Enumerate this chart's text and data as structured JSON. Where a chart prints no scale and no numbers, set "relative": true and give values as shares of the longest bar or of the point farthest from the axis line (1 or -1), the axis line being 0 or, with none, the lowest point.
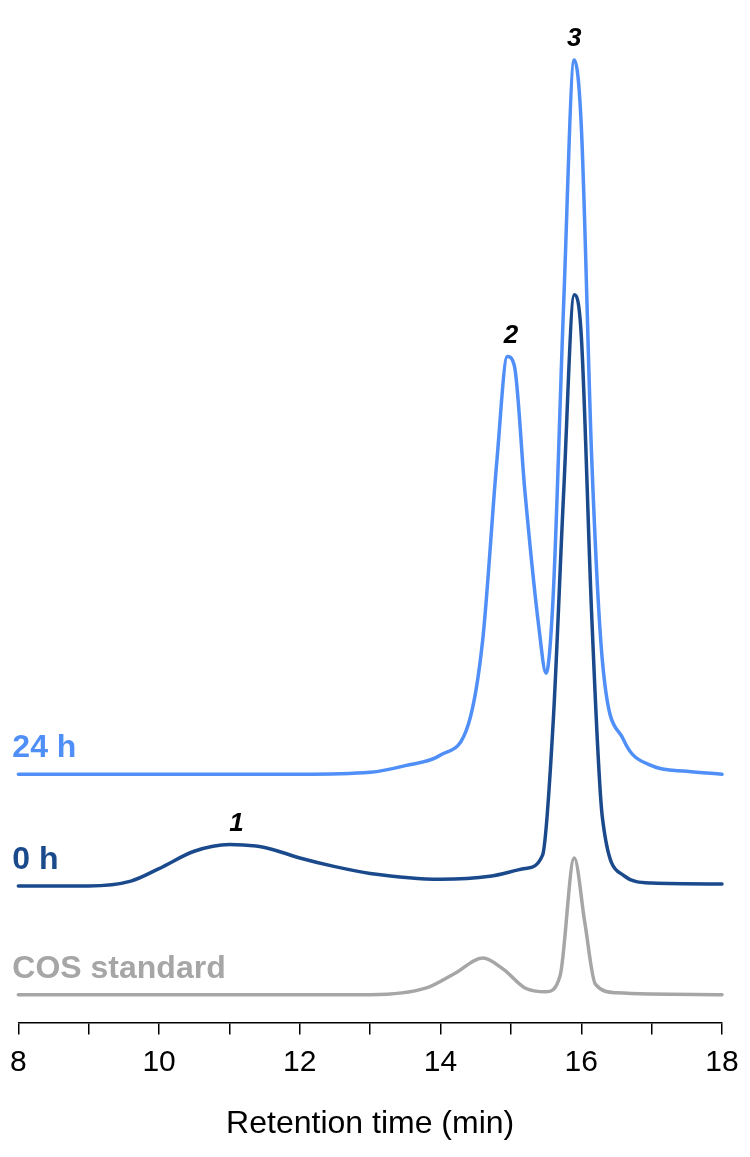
{
  "chart_data": {
    "type": "line",
    "relative": true,
    "xlabel": "Retention time (min)",
    "xlim": [
      8,
      18
    ],
    "xticks": [
      8,
      {
        "value": 9,
        "label": null
      },
      10,
      {
        "value": 11,
        "label": null
      },
      12,
      {
        "value": 13,
        "label": null
      },
      14,
      {
        "value": 15,
        "label": null
      },
      16,
      {
        "value": 17,
        "label": null
      },
      18
    ],
    "grid": false,
    "legend": false,
    "marker": "none",
    "line_style": "solid",
    "tick_labels": "x",
    "series": [
      {
        "name": "24 h",
        "color": "#4f8ff7",
        "x": [
          8,
          12,
          13,
          13.5,
          14,
          14.4,
          14.6,
          14.8,
          14.95,
          15.05,
          15.2,
          15.4,
          15.5,
          15.6,
          15.75,
          15.9,
          16.0,
          16.15,
          16.3,
          16.6,
          17,
          17.5,
          18
        ],
        "values": [
          0.258,
          0.258,
          0.26,
          0.267,
          0.278,
          0.311,
          0.398,
          0.583,
          0.692,
          0.682,
          0.551,
          0.409,
          0.363,
          0.442,
          0.747,
          1.0,
          0.932,
          0.583,
          0.376,
          0.294,
          0.267,
          0.261,
          0.258
        ]
      },
      {
        "name": "0 h",
        "color": "#1b4a8c",
        "x": [
          8,
          9,
          9.6,
          10,
          10.5,
          11,
          11.5,
          12,
          12.5,
          13,
          14,
          14.7,
          15.2,
          15.45,
          15.6,
          15.75,
          15.9,
          16.0,
          16.15,
          16.3,
          16.6,
          17,
          18
        ],
        "values": [
          0.142,
          0.142,
          0.147,
          0.16,
          0.178,
          0.185,
          0.182,
          0.171,
          0.162,
          0.155,
          0.149,
          0.152,
          0.16,
          0.174,
          0.311,
          0.551,
          0.756,
          0.714,
          0.42,
          0.213,
          0.153,
          0.145,
          0.144
        ]
      },
      {
        "name": "COS standard",
        "color": "#a6a6a6",
        "x": [
          8,
          13,
          13.8,
          14.2,
          14.6,
          14.9,
          15.2,
          15.5,
          15.7,
          15.9,
          16.05,
          16.2,
          16.5,
          18
        ],
        "values": [
          0.029,
          0.029,
          0.036,
          0.051,
          0.067,
          0.055,
          0.036,
          0.032,
          0.049,
          0.171,
          0.104,
          0.04,
          0.031,
          0.029
        ]
      }
    ],
    "annotations": [
      {
        "text": "1",
        "x": 11.1,
        "y": 0.185
      },
      {
        "text": "2",
        "x": 15.0,
        "y": 0.692
      },
      {
        "text": "3",
        "x": 15.9,
        "y": 1.0
      }
    ]
  }
}
